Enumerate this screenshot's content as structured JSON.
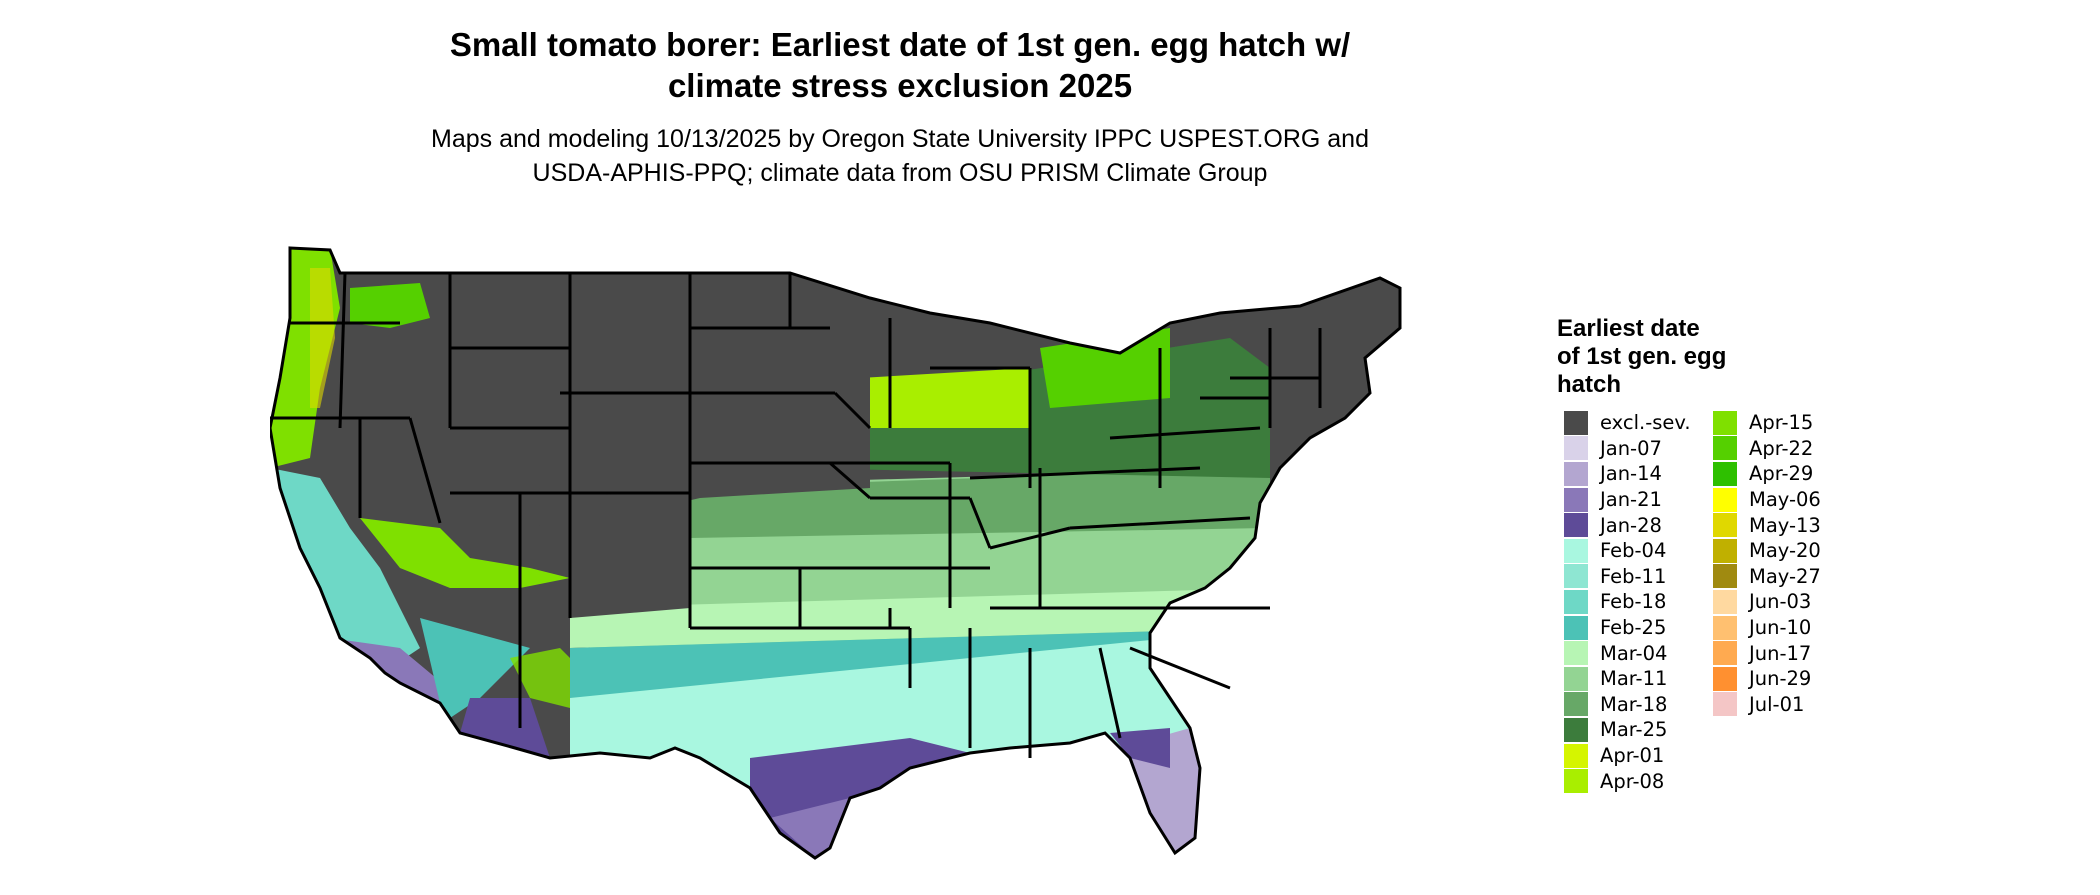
{
  "header": {
    "title_line1": "Small tomato borer: Earliest date of 1st gen. egg hatch w/",
    "title_line2": "climate stress exclusion 2025",
    "subtitle_line1": "Maps and modeling 10/13/2025 by Oregon State University IPPC USPEST.ORG and",
    "subtitle_line2": "USDA-APHIS-PPQ; climate data from OSU PRISM Climate Group"
  },
  "legend": {
    "title_line1": "Earliest date",
    "title_line2": "of 1st gen. egg",
    "title_line3": "hatch",
    "column1": [
      {
        "label": "excl.-sev.",
        "color": "#4a4a4a"
      },
      {
        "label": "Jan-07",
        "color": "#d9d2e9"
      },
      {
        "label": "Jan-14",
        "color": "#b3a6d0"
      },
      {
        "label": "Jan-21",
        "color": "#8a78b8"
      },
      {
        "label": "Jan-28",
        "color": "#5e4b98"
      },
      {
        "label": "Feb-04",
        "color": "#a9f7e0"
      },
      {
        "label": "Feb-11",
        "color": "#8ee6d2"
      },
      {
        "label": "Feb-18",
        "color": "#6ed8c6"
      },
      {
        "label": "Feb-25",
        "color": "#4cc2b6"
      },
      {
        "label": "Mar-04",
        "color": "#b7f5b4"
      },
      {
        "label": "Mar-11",
        "color": "#93d493"
      },
      {
        "label": "Mar-18",
        "color": "#67a867"
      },
      {
        "label": "Mar-25",
        "color": "#3c7c3c"
      },
      {
        "label": "Apr-01",
        "color": "#d5f500"
      },
      {
        "label": "Apr-08",
        "color": "#a9ee00"
      }
    ],
    "column2": [
      {
        "label": "Apr-15",
        "color": "#7fe000"
      },
      {
        "label": "Apr-22",
        "color": "#55d000"
      },
      {
        "label": "Apr-29",
        "color": "#2ec000"
      },
      {
        "label": "May-06",
        "color": "#ffff00"
      },
      {
        "label": "May-13",
        "color": "#e0d800"
      },
      {
        "label": "May-20",
        "color": "#c0b000"
      },
      {
        "label": "May-27",
        "color": "#a08a10"
      },
      {
        "label": "Jun-03",
        "color": "#ffd9a0"
      },
      {
        "label": "Jun-10",
        "color": "#ffc070"
      },
      {
        "label": "Jun-17",
        "color": "#ffaa50"
      },
      {
        "label": "Jun-29",
        "color": "#ff9030"
      },
      {
        "label": "Jul-01",
        "color": "#f4c6c6"
      }
    ]
  }
}
